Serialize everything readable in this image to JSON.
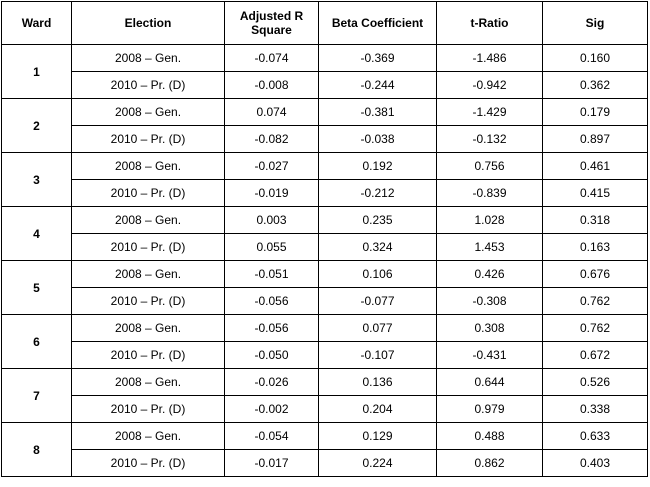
{
  "table": {
    "headers": {
      "ward": "Ward",
      "election": "Election",
      "adj_r_line1": "Adjusted R",
      "adj_r_line2": "Square",
      "beta": "Beta Coefficient",
      "t_ratio": "t-Ratio",
      "sig": "Sig"
    },
    "wards": [
      {
        "ward": "1",
        "rows": [
          {
            "election": "2008 – Gen.",
            "adj_r2": "-0.074",
            "beta": "-0.369",
            "t": "-1.486",
            "sig": "0.160"
          },
          {
            "election": "2010 – Pr. (D)",
            "adj_r2": "-0.008",
            "beta": "-0.244",
            "t": "-0.942",
            "sig": "0.362"
          }
        ]
      },
      {
        "ward": "2",
        "rows": [
          {
            "election": "2008 – Gen.",
            "adj_r2": "0.074",
            "beta": "-0.381",
            "t": "-1.429",
            "sig": "0.179"
          },
          {
            "election": "2010 – Pr. (D)",
            "adj_r2": "-0.082",
            "beta": "-0.038",
            "t": "-0.132",
            "sig": "0.897"
          }
        ]
      },
      {
        "ward": "3",
        "rows": [
          {
            "election": "2008 – Gen.",
            "adj_r2": "-0.027",
            "beta": "0.192",
            "t": "0.756",
            "sig": "0.461"
          },
          {
            "election": "2010 – Pr. (D)",
            "adj_r2": "-0.019",
            "beta": "-0.212",
            "t": "-0.839",
            "sig": "0.415"
          }
        ]
      },
      {
        "ward": "4",
        "rows": [
          {
            "election": "2008 – Gen.",
            "adj_r2": "0.003",
            "beta": "0.235",
            "t": "1.028",
            "sig": "0.318"
          },
          {
            "election": "2010 – Pr. (D)",
            "adj_r2": "0.055",
            "beta": "0.324",
            "t": "1.453",
            "sig": "0.163"
          }
        ]
      },
      {
        "ward": "5",
        "rows": [
          {
            "election": "2008 – Gen.",
            "adj_r2": "-0.051",
            "beta": "0.106",
            "t": "0.426",
            "sig": "0.676"
          },
          {
            "election": "2010 – Pr. (D)",
            "adj_r2": "-0.056",
            "beta": "-0.077",
            "t": "-0.308",
            "sig": "0.762"
          }
        ]
      },
      {
        "ward": "6",
        "rows": [
          {
            "election": "2008 – Gen.",
            "adj_r2": "-0.056",
            "beta": "0.077",
            "t": "0.308",
            "sig": "0.762"
          },
          {
            "election": "2010 – Pr. (D)",
            "adj_r2": "-0.050",
            "beta": "-0.107",
            "t": "-0.431",
            "sig": "0.672"
          }
        ]
      },
      {
        "ward": "7",
        "rows": [
          {
            "election": "2008 – Gen.",
            "adj_r2": "-0.026",
            "beta": "0.136",
            "t": "0.644",
            "sig": "0.526"
          },
          {
            "election": "2010 – Pr. (D)",
            "adj_r2": "-0.002",
            "beta": "0.204",
            "t": "0.979",
            "sig": "0.338"
          }
        ]
      },
      {
        "ward": "8",
        "rows": [
          {
            "election": "2008 – Gen.",
            "adj_r2": "-0.054",
            "beta": "0.129",
            "t": "0.488",
            "sig": "0.633"
          },
          {
            "election": "2010 – Pr. (D)",
            "adj_r2": "-0.017",
            "beta": "0.224",
            "t": "0.862",
            "sig": "0.403"
          }
        ]
      }
    ]
  }
}
